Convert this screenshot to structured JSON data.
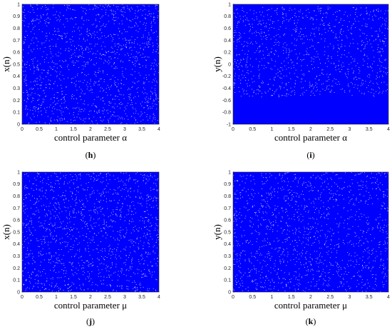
{
  "colors": {
    "points": "#0000ff",
    "axis": "#262626",
    "background": "#ffffff"
  },
  "chart_data": [
    {
      "type": "scatter",
      "panel_label": "h",
      "xlabel": "control parameter α",
      "ylabel": "x(n)",
      "xlim": [
        0,
        4
      ],
      "ylim": [
        0,
        1
      ],
      "xticks": [
        "0",
        "0.5",
        "1",
        "1.5",
        "2",
        "2.5",
        "3",
        "3.5",
        "4"
      ],
      "yticks": [
        "0",
        "0.1",
        "0.2",
        "0.3",
        "0.4",
        "0.5",
        "0.6",
        "0.7",
        "0.8",
        "0.9",
        "1"
      ],
      "grid": false,
      "point_color": "#0000ff",
      "distribution": "dense chaotic iterates filling the full range 0 to 1 for all α in [0, 4]; slightly sparser streaks near α≈0.2–0.8"
    },
    {
      "type": "scatter",
      "panel_label": "i",
      "xlabel": "control parameter α",
      "ylabel": "y(n)",
      "xlim": [
        0,
        4
      ],
      "ylim": [
        -1,
        1
      ],
      "xticks": [
        "0",
        "0.5",
        "1",
        "1.5",
        "2",
        "2.5",
        "3",
        "3.5",
        "4"
      ],
      "yticks": [
        "-1",
        "-0.8",
        "-0.6",
        "-0.4",
        "-0.2",
        "0",
        "0.2",
        "0.4",
        "0.6",
        "0.8",
        "1"
      ],
      "grid": false,
      "point_color": "#0000ff",
      "distribution": "points fill -1 to 1 for all α; very dense band from -1 to about -0.54 and a dense line near 0.97–1"
    },
    {
      "type": "scatter",
      "panel_label": "j",
      "xlabel": "control parameter μ",
      "ylabel": "x(n)",
      "xlim": [
        0,
        4
      ],
      "ylim": [
        0,
        1
      ],
      "xticks": [
        "0",
        "0.5",
        "1",
        "1.5",
        "2",
        "2.5",
        "3",
        "3.5",
        "4"
      ],
      "yticks": [
        "0",
        "0.1",
        "0.2",
        "0.3",
        "0.4",
        "0.5",
        "0.6",
        "0.7",
        "0.8",
        "0.9",
        "1"
      ],
      "grid": false,
      "point_color": "#0000ff",
      "distribution": "uniform dense chaotic iterates filling 0 to 1 for all μ in [0, 4]"
    },
    {
      "type": "scatter",
      "panel_label": "k",
      "xlabel": "control parameter μ",
      "ylabel": "y(n)",
      "xlim": [
        0,
        4
      ],
      "ylim": [
        0,
        1
      ],
      "xticks": [
        "0",
        "0.5",
        "1",
        "1.5",
        "2",
        "2.5",
        "3",
        "3.5",
        "4"
      ],
      "yticks": [
        "0",
        "0.1",
        "0.2",
        "0.3",
        "0.4",
        "0.5",
        "0.6",
        "0.7",
        "0.8",
        "0.9",
        "1"
      ],
      "grid": false,
      "point_color": "#0000ff",
      "distribution": "uniform dense chaotic iterates filling 0 to 1 for all μ in [0, 4]"
    }
  ]
}
